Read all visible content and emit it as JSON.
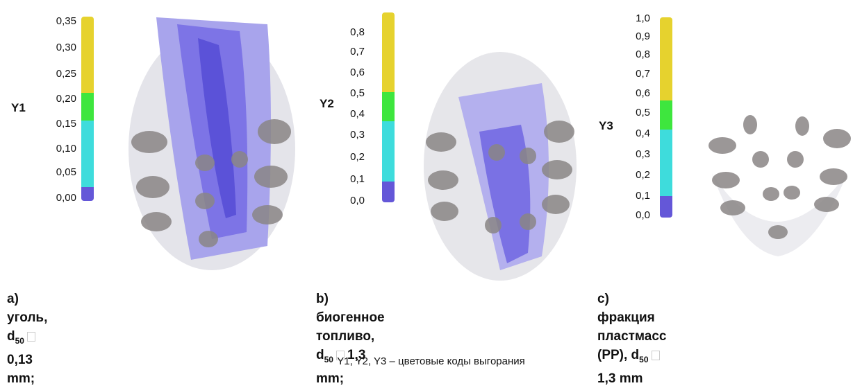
{
  "panels": [
    {
      "id": "a",
      "ylabel": "Y1",
      "ticks": [
        "0,35",
        "0,30",
        "0,25",
        "0,20",
        "0,15",
        "0,10",
        "0,05",
        "0,00"
      ],
      "caption_pre": "a) уголь, d",
      "caption_sub": "50",
      "caption_post": "0,13 mm;",
      "caption_line2": ""
    },
    {
      "id": "b",
      "ylabel": "Y2",
      "ticks": [
        "0,8",
        "0,7",
        "0,6",
        "0,5",
        "0,4",
        "0,3",
        "0,2",
        "0,1",
        "0,0"
      ],
      "caption_pre": "b) биогенное топливо, d",
      "caption_sub": "50",
      "caption_post": "1,3",
      "caption_line2": "mm;"
    },
    {
      "id": "c",
      "ylabel": "Y3",
      "ticks": [
        "1,0",
        "0,9",
        "0,8",
        "0,7",
        "0,6",
        "0,5",
        "0,4",
        "0,3",
        "0,2",
        "0,1",
        "0,0"
      ],
      "caption_pre": "c) фракция пластмасс (PP), d",
      "caption_sub": "50",
      "caption_post": "",
      "caption_line2": "1,3 mm"
    }
  ],
  "footnote": "Y1, Y2, Y3  –  цветовые коды выгорания",
  "colors": {
    "yellow": "#e6d22e",
    "green": "#3ee63e",
    "cyan": "#3edcdc",
    "blue": "#6457d8",
    "plume_blue": "#6b63e0",
    "plume_grey": "#8a8686"
  }
}
